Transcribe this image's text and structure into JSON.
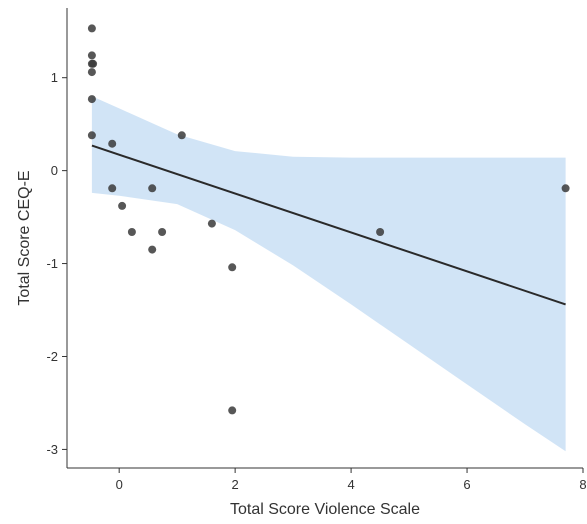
{
  "chart_data": {
    "type": "scatter",
    "xlabel": "Total Score Violence Scale",
    "ylabel": "Total Score CEQ-E",
    "xlim": [
      -0.9,
      8.0
    ],
    "ylim": [
      -3.2,
      1.75
    ],
    "x_ticks": [
      0,
      2,
      4,
      6,
      8
    ],
    "x_tick_labels": [
      "0",
      "2",
      "4",
      "6",
      "8"
    ],
    "y_ticks": [
      -3,
      -2,
      -1,
      0,
      1
    ],
    "y_tick_labels": [
      "-3",
      "-2",
      "-1",
      "0",
      "1"
    ],
    "grid": false,
    "legend": "none",
    "colors": {
      "point": "#3a3a3a",
      "line": "#2a2a2a",
      "band": "#cfe3f5",
      "axis": "#333333"
    },
    "points": [
      {
        "x": -0.47,
        "y": 1.53
      },
      {
        "x": -0.47,
        "y": 1.24
      },
      {
        "x": -0.47,
        "y": 1.15
      },
      {
        "x": -0.45,
        "y": 1.15
      },
      {
        "x": -0.47,
        "y": 1.06
      },
      {
        "x": -0.47,
        "y": 0.77
      },
      {
        "x": -0.47,
        "y": 0.38
      },
      {
        "x": -0.12,
        "y": 0.29
      },
      {
        "x": -0.12,
        "y": -0.19
      },
      {
        "x": 0.05,
        "y": -0.38
      },
      {
        "x": 0.22,
        "y": -0.66
      },
      {
        "x": 0.57,
        "y": -0.19
      },
      {
        "x": 0.57,
        "y": -0.85
      },
      {
        "x": 0.74,
        "y": -0.66
      },
      {
        "x": 1.08,
        "y": 0.38
      },
      {
        "x": 1.6,
        "y": -0.57
      },
      {
        "x": 1.95,
        "y": -1.04
      },
      {
        "x": 1.95,
        "y": -2.58
      },
      {
        "x": 4.5,
        "y": -0.66
      },
      {
        "x": 7.7,
        "y": -0.19
      }
    ],
    "regression": {
      "x": [
        -0.47,
        7.7
      ],
      "y": [
        0.27,
        -1.44
      ]
    },
    "confidence_band": {
      "x": [
        -0.47,
        0.0,
        1.0,
        2.0,
        3.0,
        4.0,
        5.0,
        6.0,
        7.0,
        7.7
      ],
      "upper": [
        0.8,
        0.67,
        0.39,
        0.21,
        0.15,
        0.14,
        0.14,
        0.14,
        0.14,
        0.14
      ],
      "lower": [
        -0.24,
        -0.27,
        -0.36,
        -0.64,
        -1.02,
        -1.44,
        -1.87,
        -2.3,
        -2.73,
        -3.02
      ]
    }
  }
}
